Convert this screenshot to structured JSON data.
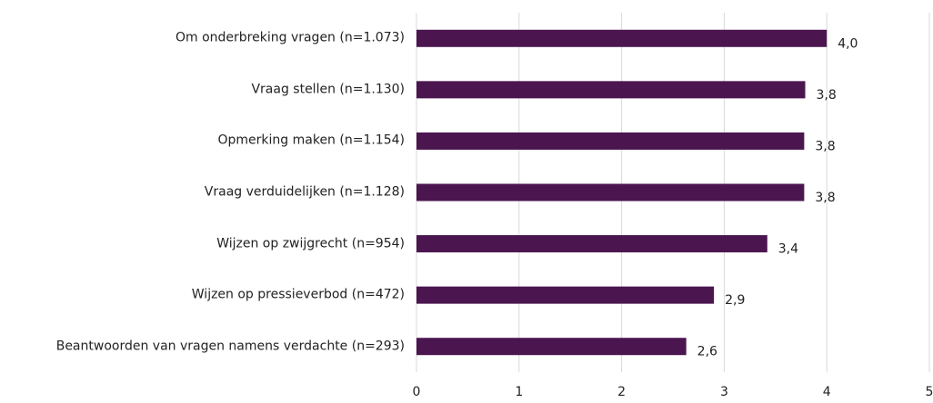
{
  "chart_data": {
    "type": "barh",
    "categories": [
      "Om onderbreking vragen (n=1.073)",
      "Vraag stellen (n=1.130)",
      "Opmerking maken (n=1.154)",
      "Vraag verduidelijken (n=1.128)",
      "Wijzen op zwijgrecht (n=954)",
      "Wijzen op pressieverbod (n=472)",
      "Beantwoorden van vragen namens verdachte (n=293)"
    ],
    "values": [
      4.0,
      3.79,
      3.78,
      3.78,
      3.42,
      2.9,
      2.63
    ],
    "value_labels": [
      "4,0",
      "3,8",
      "3,8",
      "3,8",
      "3,4",
      "2,9",
      "2,6"
    ],
    "color": "#4b1650",
    "xlim": [
      0,
      5
    ],
    "xticks": [
      0,
      1,
      2,
      3,
      4,
      5
    ],
    "grid": true
  }
}
